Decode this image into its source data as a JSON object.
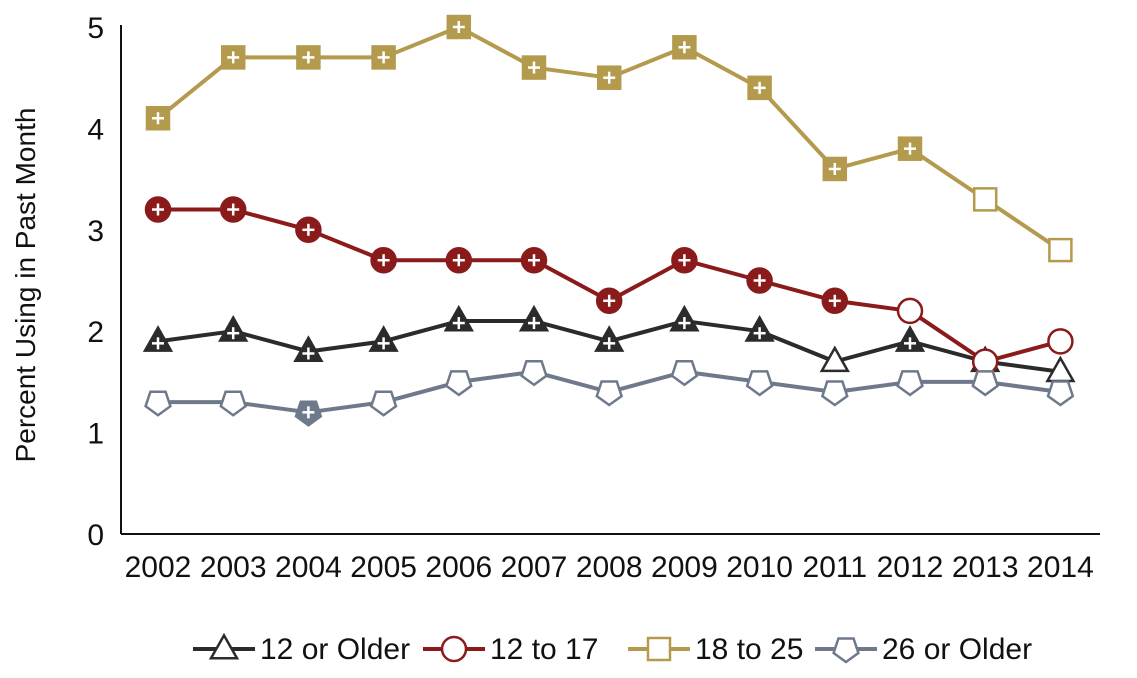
{
  "chart_data": {
    "type": "line",
    "title": "",
    "xlabel": "",
    "ylabel": "Percent Using in Past Month",
    "x": [
      "2002",
      "2003",
      "2004",
      "2005",
      "2006",
      "2007",
      "2008",
      "2009",
      "2010",
      "2011",
      "2012",
      "2013",
      "2014"
    ],
    "ylim": [
      0,
      5
    ],
    "yticks": [
      "0",
      "1",
      "2",
      "3",
      "4",
      "5"
    ],
    "grid": false,
    "legend_position": "bottom",
    "series": [
      {
        "name": "12 or Older",
        "color": "#2b2b2b",
        "marker": "triangle",
        "values": [
          1.9,
          2.0,
          1.8,
          1.9,
          2.1,
          2.1,
          1.9,
          2.1,
          2.0,
          1.7,
          1.9,
          1.7,
          1.6
        ],
        "significant": [
          true,
          true,
          true,
          true,
          true,
          true,
          true,
          true,
          true,
          false,
          true,
          false,
          false
        ]
      },
      {
        "name": "12 to 17",
        "color": "#8b1a1a",
        "marker": "circle",
        "values": [
          3.2,
          3.2,
          3.0,
          2.7,
          2.7,
          2.7,
          2.3,
          2.7,
          2.5,
          2.3,
          2.2,
          1.7,
          1.9
        ],
        "significant": [
          true,
          true,
          true,
          true,
          true,
          true,
          true,
          true,
          true,
          true,
          false,
          false,
          false
        ]
      },
      {
        "name": "18 to 25",
        "color": "#b39a4c",
        "marker": "square",
        "values": [
          4.1,
          4.7,
          4.7,
          4.7,
          5.0,
          4.6,
          4.5,
          4.8,
          4.4,
          3.6,
          3.8,
          3.3,
          2.8
        ],
        "significant": [
          true,
          true,
          true,
          true,
          true,
          true,
          true,
          true,
          true,
          true,
          true,
          false,
          false
        ]
      },
      {
        "name": "26 or Older",
        "color": "#6e7a8c",
        "marker": "pentagon",
        "values": [
          1.3,
          1.3,
          1.2,
          1.3,
          1.5,
          1.6,
          1.4,
          1.6,
          1.5,
          1.4,
          1.5,
          1.5,
          1.4
        ],
        "significant": [
          false,
          false,
          true,
          false,
          false,
          false,
          false,
          false,
          false,
          false,
          false,
          false,
          false
        ]
      }
    ]
  }
}
